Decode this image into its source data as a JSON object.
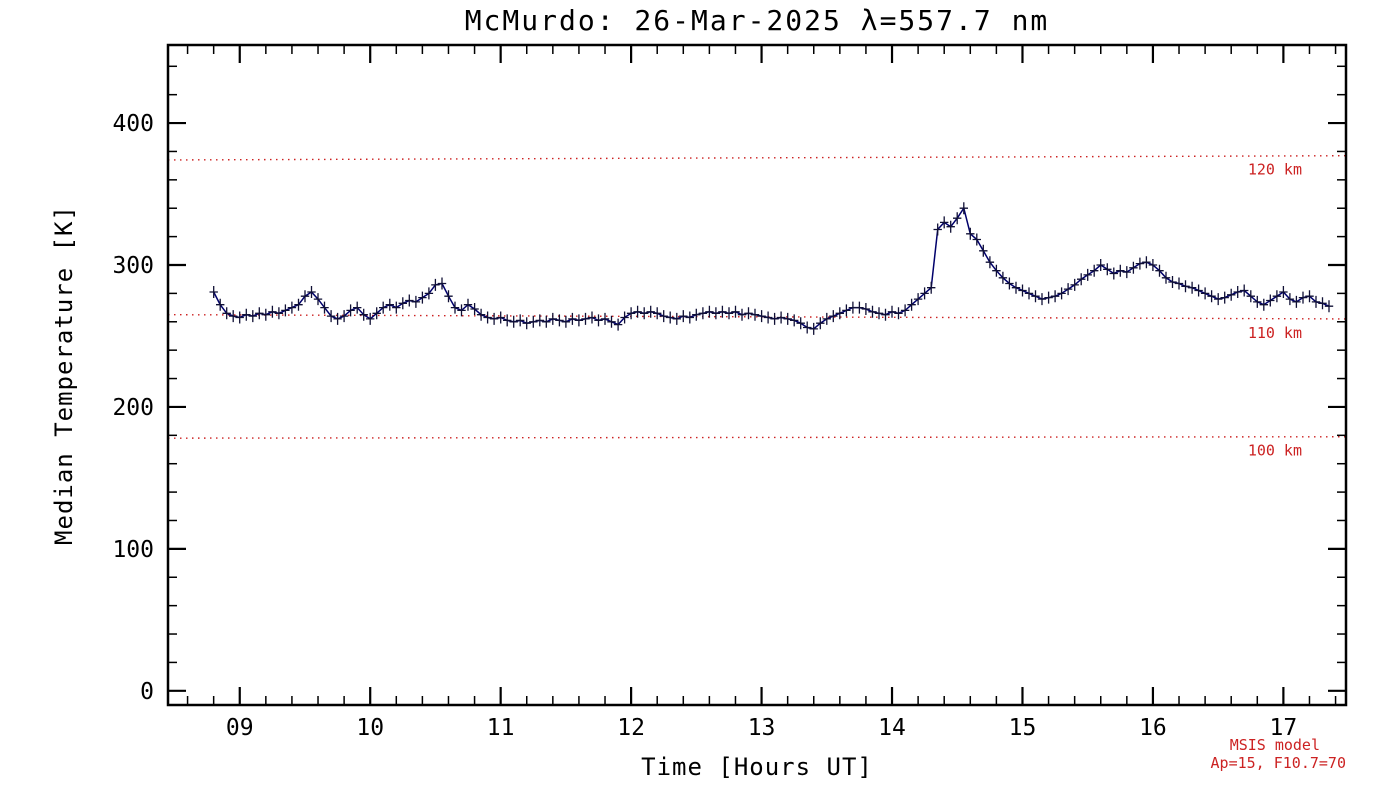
{
  "chart_data": {
    "type": "line",
    "title": "McMurdo: 26-Mar-2025 λ=557.7 nm",
    "xlabel": "Time [Hours UT]",
    "ylabel": "Median Temperature [K]",
    "xlim": [
      8.45,
      17.48
    ],
    "ylim": [
      -10,
      455
    ],
    "grid": false,
    "xticks": [
      {
        "v": 9,
        "label": "09"
      },
      {
        "v": 10,
        "label": "10"
      },
      {
        "v": 11,
        "label": "11"
      },
      {
        "v": 12,
        "label": "12"
      },
      {
        "v": 13,
        "label": "13"
      },
      {
        "v": 14,
        "label": "14"
      },
      {
        "v": 15,
        "label": "15"
      },
      {
        "v": 16,
        "label": "16"
      },
      {
        "v": 17,
        "label": "17"
      }
    ],
    "yticks": [
      0,
      100,
      200,
      300,
      400
    ],
    "x_minor_step": 0.2,
    "y_minor_step": 20,
    "series": [
      {
        "name": "median-temperature",
        "color": "#00006b",
        "marker": "plus",
        "marker_color": "#101035",
        "x_start": 8.8,
        "x_step": 0.05,
        "values": [
          281,
          272,
          266,
          264,
          263,
          265,
          264,
          266,
          265,
          267,
          266,
          268,
          270,
          272,
          278,
          281,
          276,
          270,
          264,
          262,
          264,
          268,
          270,
          265,
          262,
          266,
          270,
          272,
          270,
          273,
          275,
          274,
          277,
          280,
          286,
          287,
          278,
          270,
          268,
          272,
          269,
          265,
          263,
          262,
          263,
          261,
          260,
          261,
          259,
          260,
          261,
          260,
          262,
          261,
          260,
          262,
          261,
          262,
          263,
          261,
          262,
          260,
          258,
          263,
          266,
          267,
          266,
          267,
          266,
          264,
          263,
          262,
          264,
          263,
          265,
          266,
          267,
          266,
          267,
          266,
          267,
          265,
          266,
          265,
          264,
          263,
          262,
          263,
          262,
          261,
          259,
          256,
          255,
          259,
          262,
          264,
          266,
          268,
          270,
          270,
          269,
          267,
          266,
          265,
          267,
          266,
          268,
          272,
          276,
          280,
          284,
          325,
          330,
          327,
          333,
          340,
          322,
          318,
          310,
          302,
          296,
          291,
          287,
          284,
          282,
          280,
          278,
          276,
          277,
          278,
          280,
          283,
          286,
          290,
          293,
          296,
          300,
          297,
          294,
          296,
          295,
          298,
          301,
          302,
          300,
          296,
          291,
          288,
          287,
          285,
          284,
          282,
          280,
          278,
          276,
          277,
          279,
          281,
          282,
          278,
          274,
          272,
          275,
          278,
          281,
          276,
          274,
          277,
          278,
          274,
          273,
          271
        ]
      }
    ],
    "reference_lines": [
      {
        "label": "120 km",
        "y_start": 374,
        "y_end": 377,
        "color": "#cc2222"
      },
      {
        "label": "110 km",
        "y_start": 265,
        "y_end": 262,
        "color": "#cc2222"
      },
      {
        "label": "100 km",
        "y_start": 178,
        "y_end": 179,
        "color": "#cc2222"
      }
    ],
    "annotation": {
      "line1": "MSIS model",
      "line2": "Ap=15, F10.7=70",
      "color": "#cc2222"
    }
  }
}
